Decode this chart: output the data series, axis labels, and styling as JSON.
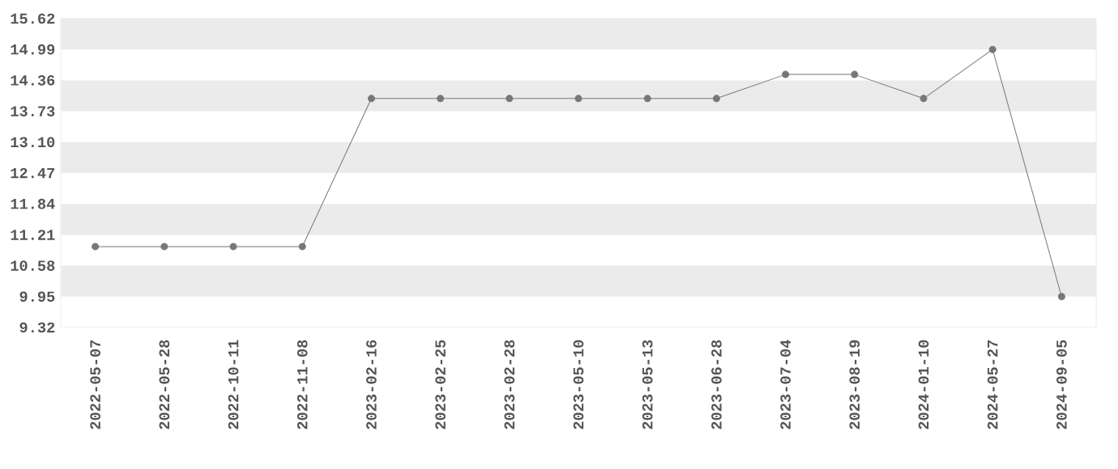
{
  "chart_data": {
    "type": "line",
    "categories": [
      "2022-05-07",
      "2022-05-28",
      "2022-10-11",
      "2022-11-08",
      "2023-02-16",
      "2023-02-25",
      "2023-02-28",
      "2023-05-10",
      "2023-05-13",
      "2023-06-28",
      "2023-07-04",
      "2023-08-19",
      "2024-01-10",
      "2024-05-27",
      "2024-09-05"
    ],
    "series": [
      {
        "color": "#777777",
        "values": [
          10.97,
          10.97,
          10.97,
          10.97,
          13.99,
          13.99,
          13.99,
          13.99,
          13.99,
          13.99,
          14.48,
          14.48,
          13.99,
          14.99,
          9.95
        ]
      }
    ],
    "ylim": [
      9.32,
      15.62
    ],
    "yticks": [
      9.32,
      9.95,
      {
        "value": 10.58,
        "label": "10.58"
      },
      11.21,
      11.84,
      12.47,
      {
        "value": 13.1,
        "label": "13.10"
      },
      13.73,
      14.36,
      14.99,
      15.62
    ],
    "bands": [
      {
        "axis": "y",
        "from": 14.99,
        "to": 15.62,
        "color": "#ebebeb"
      },
      {
        "axis": "y",
        "from": 13.73,
        "to": 14.36,
        "color": "#ebebeb"
      },
      {
        "axis": "y",
        "from": 12.47,
        "to": 13.1,
        "color": "#ebebeb"
      },
      {
        "axis": "y",
        "from": 11.21,
        "to": 11.84,
        "color": "#ebebeb"
      },
      {
        "axis": "y",
        "from": 9.95,
        "to": 10.58,
        "color": "#ebebeb"
      }
    ],
    "marker": "circle",
    "line_style": "solid"
  }
}
